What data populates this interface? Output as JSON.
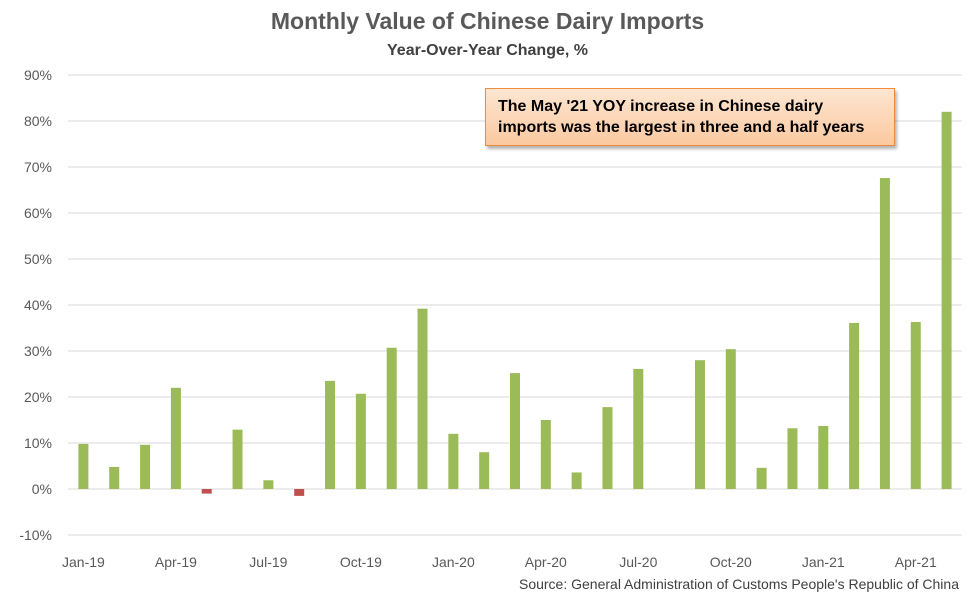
{
  "chart_data": {
    "type": "bar",
    "title": "Monthly Value of Chinese Dairy Imports",
    "subtitle": "Year-Over-Year Change, %",
    "ylim": [
      -10,
      90
    ],
    "yticks": [
      -10,
      0,
      10,
      20,
      30,
      40,
      50,
      60,
      70,
      80,
      90
    ],
    "ytick_labels": [
      "-10%",
      "0%",
      "10%",
      "20%",
      "30%",
      "40%",
      "50%",
      "60%",
      "70%",
      "80%",
      "90%"
    ],
    "grid": true,
    "categories": [
      "Jan-19",
      "Feb-19",
      "Mar-19",
      "Apr-19",
      "May-19",
      "Jun-19",
      "Jul-19",
      "Aug-19",
      "Sep-19",
      "Oct-19",
      "Nov-19",
      "Dec-19",
      "Jan-20",
      "Feb-20",
      "Mar-20",
      "Apr-20",
      "May-20",
      "Jun-20",
      "Jul-20",
      "Aug-20",
      "Sep-20",
      "Oct-20",
      "Nov-20",
      "Dec-20",
      "Jan-21",
      "Feb-21",
      "Mar-21",
      "Apr-21",
      "May-21"
    ],
    "x_tick_labels": [
      "Jan-19",
      "",
      "",
      "Apr-19",
      "",
      "",
      "Jul-19",
      "",
      "",
      "Oct-19",
      "",
      "",
      "Jan-20",
      "",
      "",
      "Apr-20",
      "",
      "",
      "Jul-20",
      "",
      "",
      "Oct-20",
      "",
      "",
      "Jan-21",
      "",
      "",
      "Apr-21",
      ""
    ],
    "values": [
      9.8,
      4.8,
      9.6,
      22.0,
      -1.0,
      12.9,
      1.9,
      -1.5,
      23.5,
      20.7,
      30.7,
      39.2,
      12.0,
      8.0,
      25.2,
      15.0,
      3.6,
      17.8,
      26.1,
      null,
      28.0,
      30.4,
      4.6,
      13.2,
      13.7,
      36.1,
      67.6,
      36.3,
      82.0
    ],
    "colors": {
      "positive": "#9bbb59",
      "negative": "#c0504d",
      "grid": "#d9d9d9",
      "axis_text": "#595959"
    }
  },
  "annotation": {
    "line1": "The May '21 YOY increase in Chinese dairy",
    "line2": "imports was the largest in three and a half years"
  },
  "source": "Source: General Administration of Customs People's Republic of China"
}
